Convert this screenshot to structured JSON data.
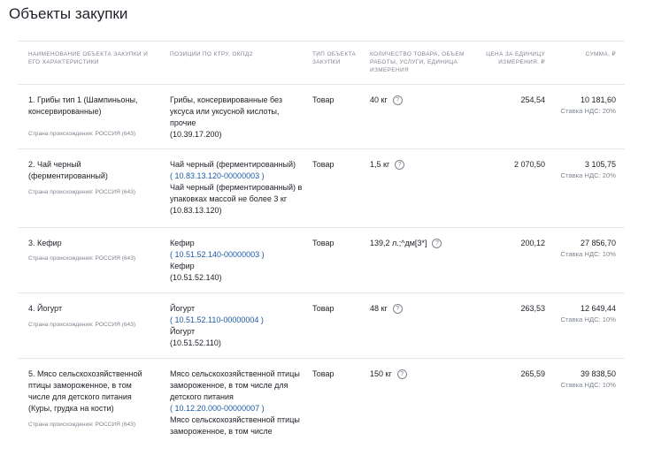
{
  "title": "Объекты закупки",
  "headers": {
    "name": "Наименование объекта закупки и его характеристики",
    "positions": "Позиции по КТРУ, ОКПД2",
    "type": "Тип объекта закупки",
    "quantity": "Количество товара, объем работы, услуги, единица измерения",
    "price": "Цена за единицу измерения, ₽",
    "sum": "Сумма, ₽"
  },
  "rows": [
    {
      "name": "1. Грибы тип 1 (Шампиньоны, консервированные)",
      "country": "Страна происхождения: РОССИЯ (643)",
      "pos1": "Грибы, консервированные без уксуса или уксусной кислоты, прочие",
      "code1": "",
      "pos2": "(10.39.17.200)",
      "pos3": "",
      "type": "Товар",
      "qty": "40 кг",
      "price": "254,54",
      "sum": "10 181,60",
      "vat": "Ставка НДС: 20%"
    },
    {
      "name": "2. Чай черный (ферментированный)",
      "country": "Страна происхождения: РОССИЯ (643)",
      "pos1": "Чай черный (ферментированный)",
      "code1": "( 10.83.13.120-00000003 )",
      "pos2": "Чай черный (ферментированный) в упаковках массой не более 3 кг",
      "pos3": "(10.83.13.120)",
      "type": "Товар",
      "qty": "1,5 кг",
      "price": "2 070,50",
      "sum": "3 105,75",
      "vat": "Ставка НДС: 20%"
    },
    {
      "name": "3. Кефир",
      "country": "Страна происхождения: РОССИЯ (643)",
      "pos1": "Кефир",
      "code1": "( 10.51.52.140-00000003 )",
      "pos2": "Кефир",
      "pos3": "(10.51.52.140)",
      "type": "Товар",
      "qty": "139,2 л.;^дм[3*]",
      "price": "200,12",
      "sum": "27 856,70",
      "vat": "Ставка НДС: 10%"
    },
    {
      "name": "4. Йогурт",
      "country": "Страна происхождения: РОССИЯ (643)",
      "pos1": "Йогурт",
      "code1": "( 10.51.52.110-00000004 )",
      "pos2": "Йогурт",
      "pos3": "(10.51.52.110)",
      "type": "Товар",
      "qty": "48 кг",
      "price": "263,53",
      "sum": "12 649,44",
      "vat": "Ставка НДС: 10%"
    },
    {
      "name": "5. Мясо сельскохозяйственной птицы замороженное, в том числе для детского питания (Куры, грудка на кости)",
      "country": "Страна происхождения: РОССИЯ (643)",
      "pos1": "Мясо сельскохозяйственной птицы замороженное, в том числе для детского питания",
      "code1": "( 10.12.20.000-00000007 )",
      "pos2": "Мясо сельскохозяйственной птицы замороженное, в том числе",
      "pos3": "",
      "type": "Товар",
      "qty": "150 кг",
      "price": "265,59",
      "sum": "39 838,50",
      "vat": "Ставка НДС: 10%"
    }
  ]
}
